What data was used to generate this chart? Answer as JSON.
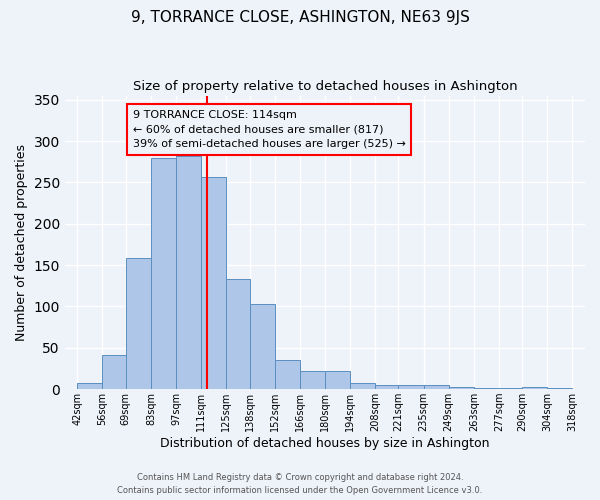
{
  "title": "9, TORRANCE CLOSE, ASHINGTON, NE63 9JS",
  "subtitle": "Size of property relative to detached houses in Ashington",
  "xlabel": "Distribution of detached houses by size in Ashington",
  "ylabel": "Number of detached properties",
  "bin_edges": [
    42,
    56,
    69,
    83,
    97,
    111,
    125,
    138,
    152,
    166,
    180,
    194,
    208,
    221,
    235,
    249,
    263,
    277,
    290,
    304,
    318
  ],
  "bar_heights": [
    8,
    41,
    158,
    280,
    282,
    257,
    133,
    103,
    35,
    22,
    22,
    7,
    5,
    5,
    5,
    3,
    2,
    1,
    3,
    2
  ],
  "bar_color": "#aec6e8",
  "bar_edge_color": "#5a8fc0",
  "property_line_x": 114,
  "property_line_color": "red",
  "annotation_text_line1": "9 TORRANCE CLOSE: 114sqm",
  "annotation_text_line2": "← 60% of detached houses are smaller (817)",
  "annotation_text_line3": "39% of semi-detached houses are larger (525) →",
  "annotation_box_color": "red",
  "ylim": [
    0,
    355
  ],
  "xlim": [
    35,
    325
  ],
  "tick_labels": [
    "42sqm",
    "56sqm",
    "69sqm",
    "83sqm",
    "97sqm",
    "111sqm",
    "125sqm",
    "138sqm",
    "152sqm",
    "166sqm",
    "180sqm",
    "194sqm",
    "208sqm",
    "221sqm",
    "235sqm",
    "249sqm",
    "263sqm",
    "277sqm",
    "290sqm",
    "304sqm",
    "318sqm"
  ],
  "tick_positions": [
    42,
    56,
    69,
    83,
    97,
    111,
    125,
    138,
    152,
    166,
    180,
    194,
    208,
    221,
    235,
    249,
    263,
    277,
    290,
    304,
    318
  ],
  "footer_line1": "Contains HM Land Registry data © Crown copyright and database right 2024.",
  "footer_line2": "Contains public sector information licensed under the Open Government Licence v3.0.",
  "background_color": "#eef2f9",
  "grid_color": "#ffffff",
  "title_fontsize": 11,
  "subtitle_fontsize": 9.5,
  "axis_label_fontsize": 9,
  "tick_fontsize": 7,
  "annotation_fontsize": 8
}
